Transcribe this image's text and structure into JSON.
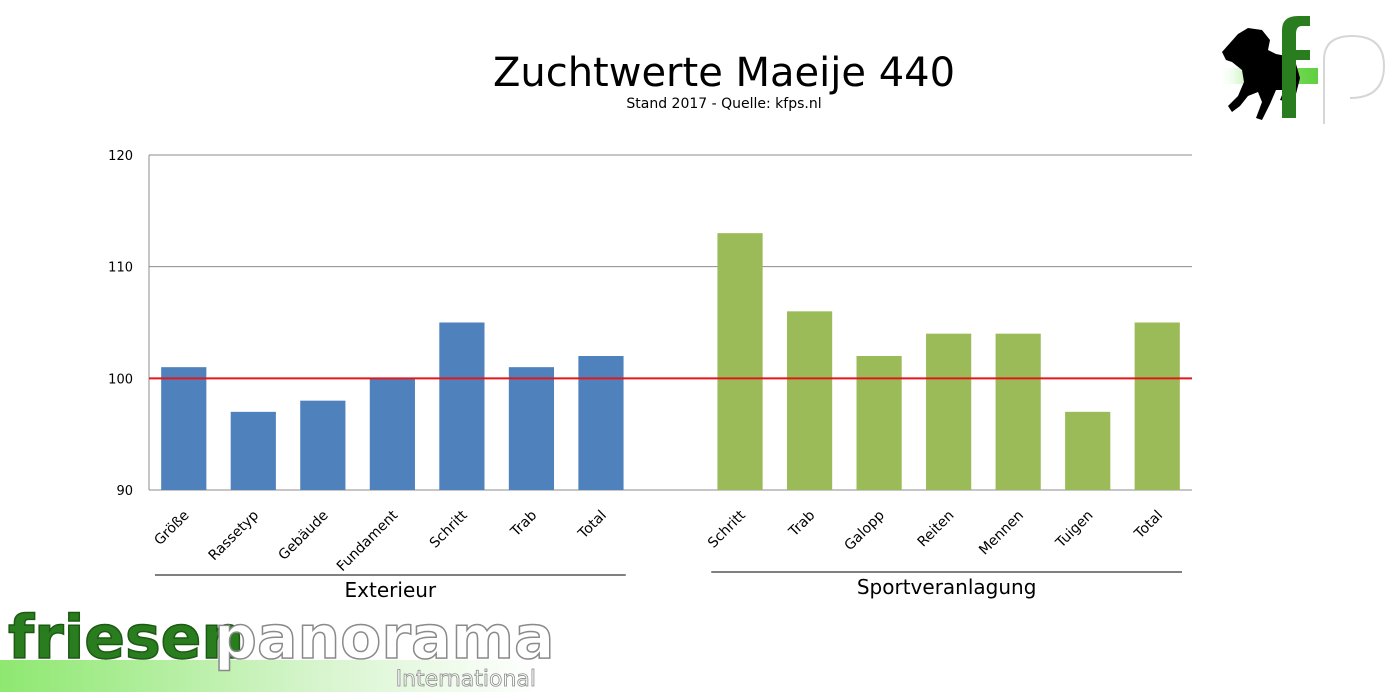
{
  "chart_data": {
    "type": "bar",
    "title": "Zuchtwerte Maeije 440",
    "subtitle": "Stand 2017 - Quelle: kfps.nl",
    "ylim": [
      90,
      120
    ],
    "yticks": [
      90,
      100,
      110,
      120
    ],
    "grid": true,
    "reference_line": {
      "value": 100,
      "color": "#e3171b"
    },
    "groups": [
      {
        "name": "Exterieur",
        "color": "#4f81bd",
        "categories": [
          "Größe",
          "Rassetyp",
          "Gebäude",
          "Fundament",
          "Schritt",
          "Trab",
          "Total"
        ],
        "values": [
          101,
          97,
          98,
          100,
          105,
          101,
          102
        ]
      },
      {
        "name": "Sportveranlagung",
        "color": "#9bbb59",
        "categories": [
          "Schritt",
          "Trab",
          "Galopp",
          "Reiten",
          "Mennen",
          "Tuigen",
          "Total"
        ],
        "values": [
          113,
          106,
          102,
          104,
          104,
          97,
          105
        ]
      }
    ]
  },
  "branding": {
    "main_word": "friesen",
    "second_word": "panorama",
    "sub": "International",
    "logo_letters": "fp",
    "green": "#2a7d1e",
    "light_green": "#8ee870"
  }
}
